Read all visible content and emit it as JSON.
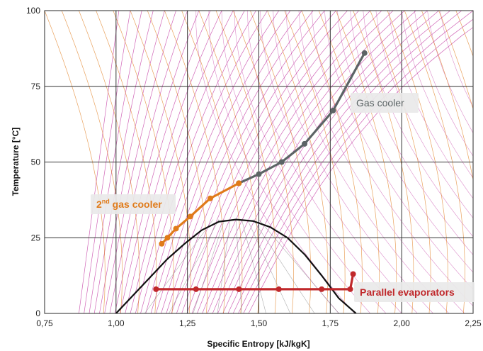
{
  "chart_data": {
    "type": "line",
    "xlabel": "Specific Entropy [kJ/kgK]",
    "ylabel": "Temperature [°C]",
    "xlim": [
      0.75,
      2.25
    ],
    "ylim": [
      0,
      100
    ],
    "x_ticks": [
      "0,75",
      "1,00",
      "1,25",
      "1,50",
      "1,75",
      "2,00",
      "2,25"
    ],
    "y_ticks": [
      "0",
      "25",
      "50",
      "75",
      "100"
    ],
    "grid": true,
    "series": [
      {
        "name": "Gas cooler",
        "color": "#5c6466",
        "x": [
          1.43,
          1.5,
          1.58,
          1.66,
          1.76,
          1.87
        ],
        "y": [
          43,
          46,
          50,
          56,
          67,
          86
        ]
      },
      {
        "name": "2nd gas cooler",
        "color": "#e07b1a",
        "x": [
          1.16,
          1.18,
          1.21,
          1.26,
          1.33,
          1.43
        ],
        "y": [
          23,
          25,
          28,
          32,
          38,
          43
        ]
      },
      {
        "name": "Parallel evaporators",
        "color": "#c0282b",
        "x": [
          1.14,
          1.28,
          1.43,
          1.57,
          1.72,
          1.82,
          1.83
        ],
        "y": [
          8,
          8,
          8,
          8,
          8,
          8,
          13
        ]
      }
    ],
    "saturation_dome": {
      "color": "#111111",
      "x": [
        1.0,
        1.06,
        1.12,
        1.18,
        1.24,
        1.3,
        1.36,
        1.42,
        1.48,
        1.54,
        1.6,
        1.66,
        1.72,
        1.78,
        1.84
      ],
      "y": [
        0,
        6,
        12,
        18,
        23,
        27.5,
        30.3,
        31,
        30.5,
        28.5,
        25,
        19.5,
        12.5,
        5,
        0
      ]
    },
    "isobar_color": "#c0319f",
    "isochore_color": "#e07b1a",
    "annotations": [
      {
        "text": "Gas cooler",
        "color": "#5c6466"
      },
      {
        "text": "2",
        "sup": "nd",
        "rest": " gas cooler",
        "color": "#e07b1a"
      },
      {
        "text": "Parallel evaporators",
        "color": "#c0282b"
      }
    ]
  }
}
